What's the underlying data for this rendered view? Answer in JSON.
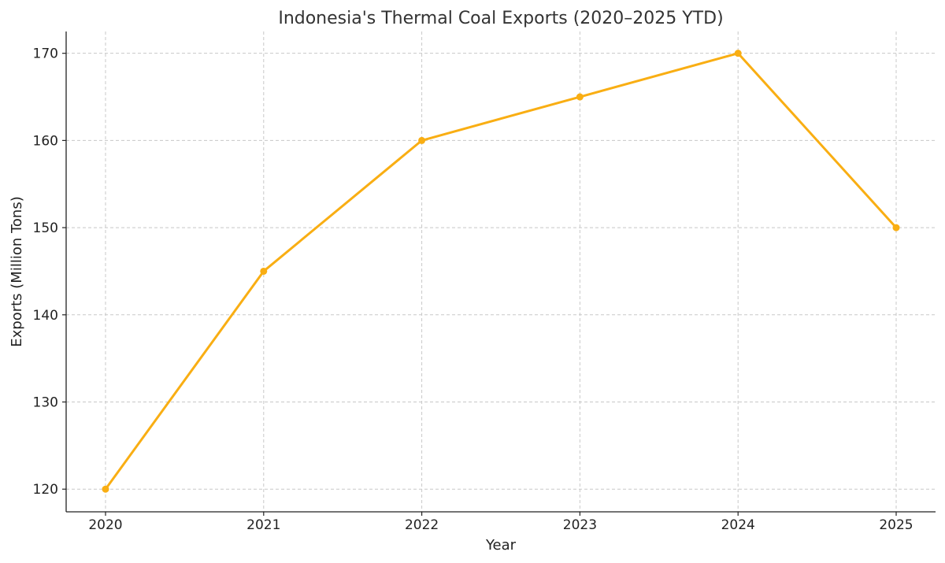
{
  "chart_data": {
    "type": "line",
    "title": "Indonesia's Thermal Coal Exports (2020–2025 YTD)",
    "xlabel": "Year",
    "ylabel": "Exports (Million Tons)",
    "x": [
      "2020",
      "2021",
      "2022",
      "2023",
      "2024",
      "2025"
    ],
    "series": [
      {
        "values": [
          120,
          145,
          160,
          165,
          170,
          150
        ],
        "color": "#F9AE13"
      }
    ],
    "y_ticks": [
      120,
      130,
      140,
      150,
      160,
      170
    ],
    "ylim": [
      117.4,
      172.5
    ],
    "grid": true,
    "legend": "none"
  }
}
